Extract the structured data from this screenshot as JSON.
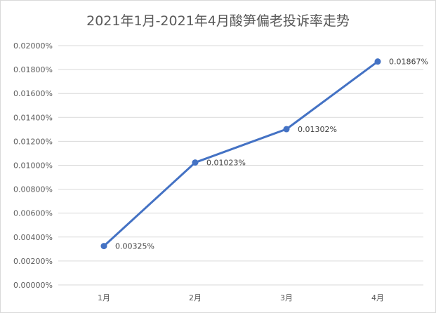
{
  "chart_data": {
    "type": "line",
    "title": "2021年1月-2021年4月酸笋偏老投诉率走势",
    "xlabel": "",
    "ylabel": "",
    "categories": [
      "1月",
      "2月",
      "3月",
      "4月"
    ],
    "series": [
      {
        "values": [
          0.00325,
          0.01023,
          0.01302,
          0.01867
        ],
        "labels": [
          "0.00325%",
          "0.01023%",
          "0.01302%",
          "0.01867%"
        ],
        "color": "#4472c4"
      }
    ],
    "ylim": [
      0,
      0.02
    ],
    "yticks": [
      0,
      0.002,
      0.004,
      0.006,
      0.008,
      0.01,
      0.012,
      0.014,
      0.016,
      0.018,
      0.02
    ],
    "ytick_labels": [
      "0.00000%",
      "0.00200%",
      "0.00400%",
      "0.00600%",
      "0.00800%",
      "0.01000%",
      "0.01200%",
      "0.01400%",
      "0.01600%",
      "0.01800%",
      "0.02000%"
    ],
    "grid": true,
    "legend": "none"
  }
}
